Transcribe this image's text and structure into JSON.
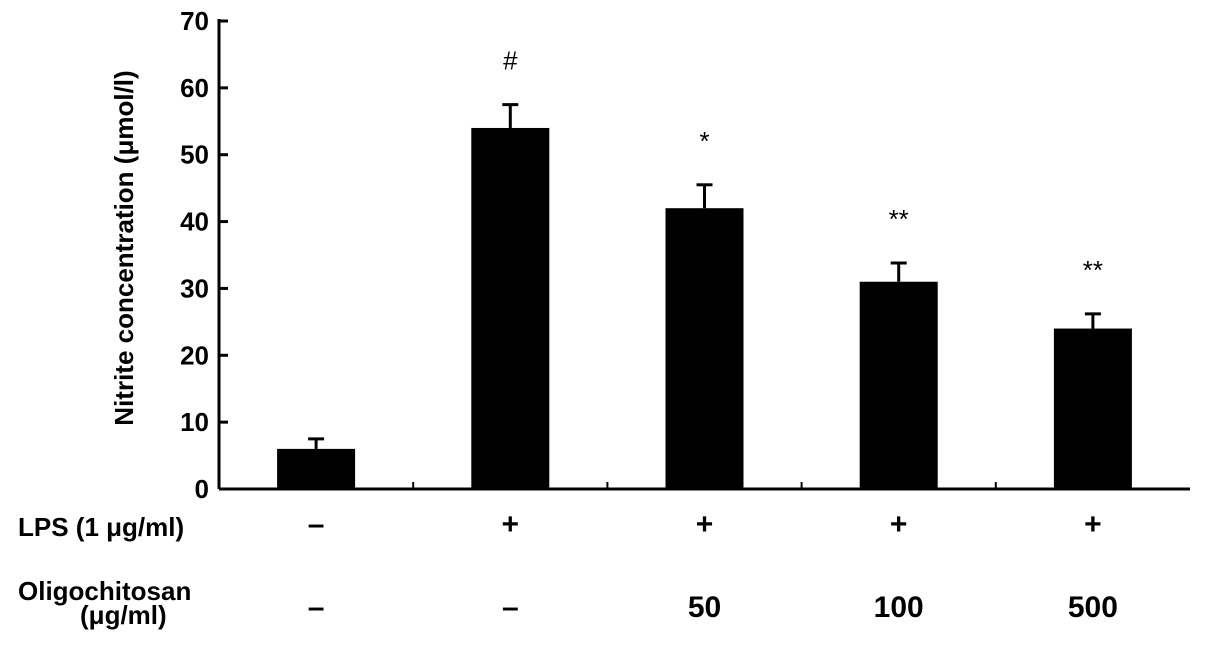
{
  "chart_data": {
    "type": "bar",
    "ylabel": "Nitrite concentration (μmol/l)",
    "ylim": [
      0,
      70
    ],
    "yticks": [
      0,
      10,
      20,
      30,
      40,
      50,
      60,
      70
    ],
    "grid": false,
    "values": [
      6,
      54,
      42,
      31,
      24
    ],
    "errors": [
      1.5,
      3.5,
      3.5,
      2.8,
      2.2
    ],
    "significance": [
      "",
      "#",
      "*",
      "**",
      "**"
    ],
    "colors": {
      "bar": "#000000",
      "axis": "#000000"
    },
    "rows": [
      {
        "label": "LPS (1 μg/ml)",
        "values": [
          "–",
          "+",
          "+",
          "+",
          "+"
        ]
      },
      {
        "label": [
          "Oligochitosan",
          "(μg/ml)"
        ],
        "values": [
          "–",
          "–",
          "50",
          "100",
          "500"
        ]
      }
    ]
  }
}
